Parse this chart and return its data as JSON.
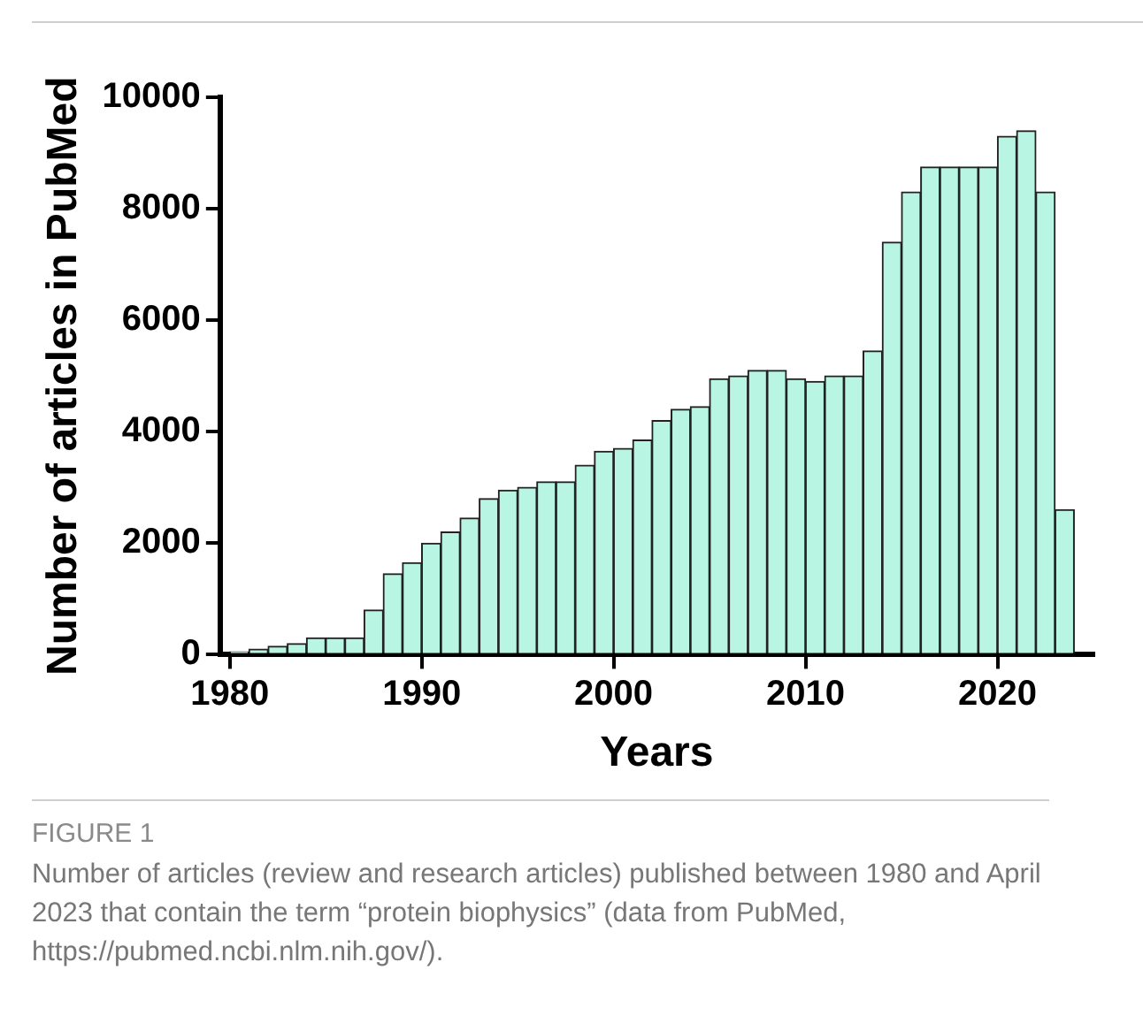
{
  "chart_data": {
    "type": "histogram",
    "xlabel": "Years",
    "ylabel": "Number of articles in PubMed",
    "bins": [
      1980,
      1981,
      1982,
      1983,
      1984,
      1985,
      1986,
      1987,
      1988,
      1989,
      1990,
      1991,
      1992,
      1993,
      1994,
      1995,
      1996,
      1997,
      1998,
      1999,
      2000,
      2001,
      2002,
      2003,
      2004,
      2005,
      2006,
      2007,
      2008,
      2009,
      2010,
      2011,
      2012,
      2013,
      2014,
      2015,
      2016,
      2017,
      2018,
      2019,
      2020,
      2021,
      2022,
      2023,
      2024
    ],
    "values": [
      50,
      100,
      150,
      200,
      300,
      300,
      300,
      800,
      1450,
      1650,
      2000,
      2200,
      2450,
      2800,
      2950,
      3000,
      3100,
      3100,
      3400,
      3650,
      3700,
      3850,
      4200,
      4400,
      4450,
      4950,
      5000,
      5100,
      5100,
      4950,
      4900,
      5000,
      5000,
      5450,
      7400,
      8300,
      8750,
      8750,
      8750,
      8750,
      9300,
      9400,
      8300,
      2600
    ],
    "color": "#b8f5e3",
    "xlim": [
      1979.5,
      2025
    ],
    "xticks": [
      1980,
      1990,
      2000,
      2010,
      2020
    ],
    "ylim": [
      0,
      10000
    ],
    "yticks": [
      0,
      2000,
      4000,
      6000,
      8000,
      10000
    ],
    "grid": false,
    "legend": false,
    "annotations": [
      "FIGURE 1",
      "Number of articles (review and research articles) published between 1980 and April 2023 that contain the term “protein biophysics” (data from PubMed, https://pubmed.ncbi.nlm.nih.gov/)."
    ]
  }
}
